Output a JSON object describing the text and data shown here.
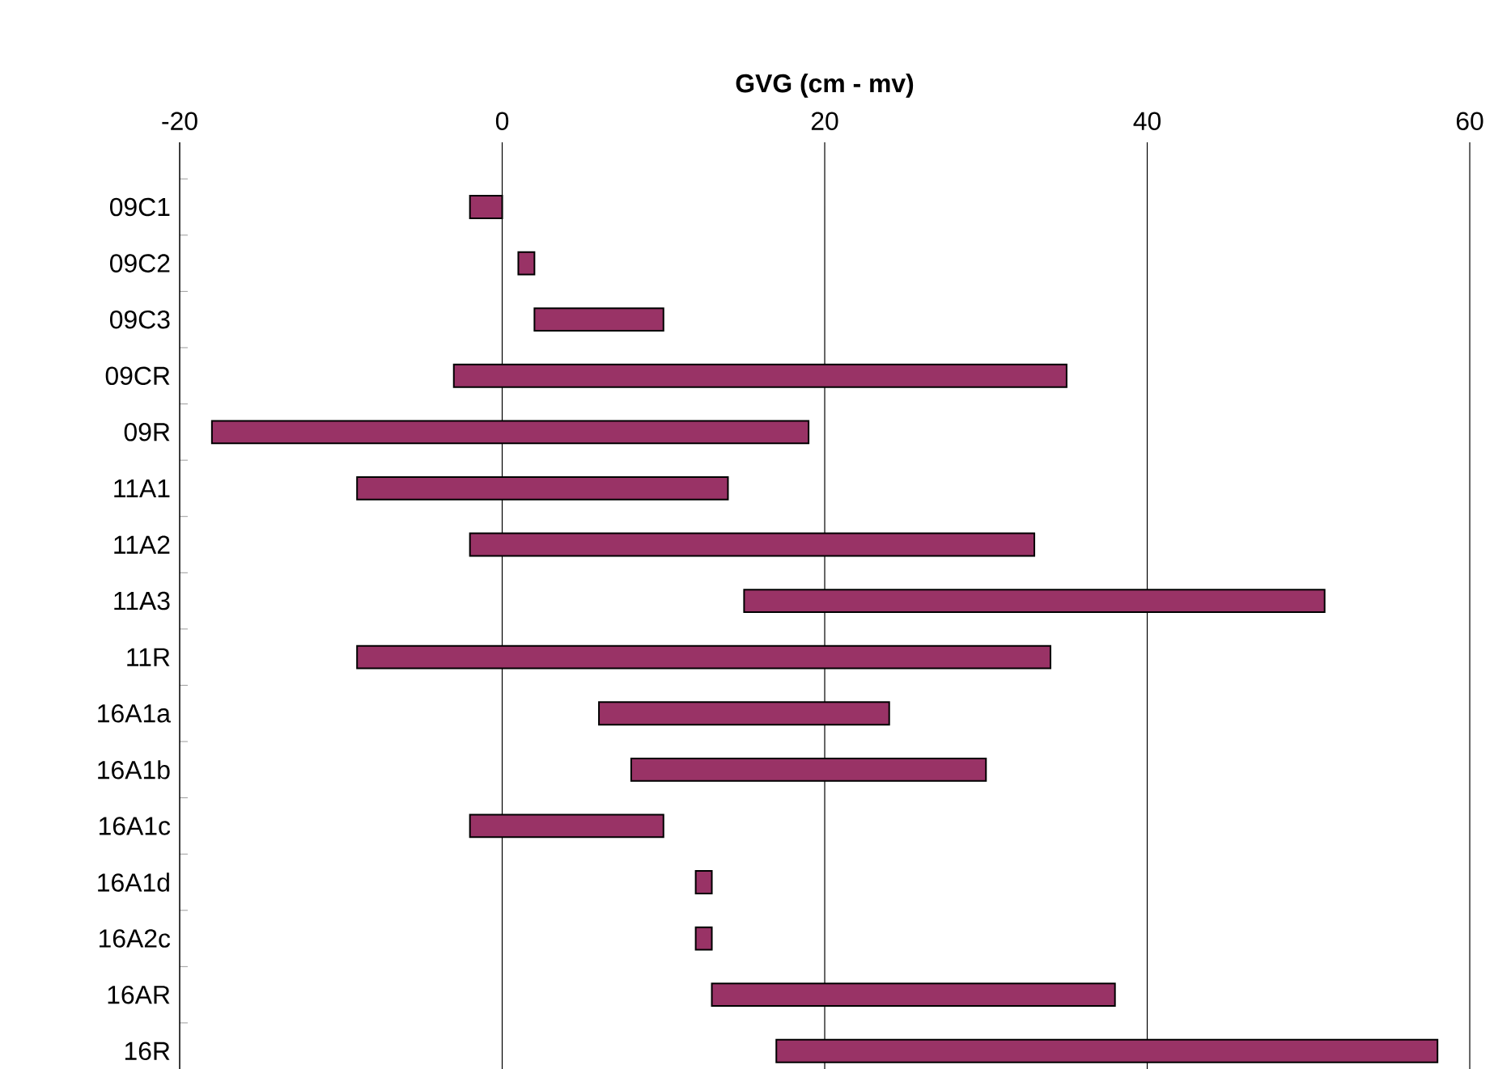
{
  "chart_data": {
    "type": "bar",
    "orientation": "horizontal",
    "xlabel": "GVG (cm - mv)",
    "categories": [
      "09C1",
      "09C2",
      "09C3",
      "09CR",
      "09R",
      "11A1",
      "11A2",
      "11A3",
      "11R",
      "16A1a",
      "16A1b",
      "16A1c",
      "16A1d",
      "16A2c",
      "16AR",
      "16R"
    ],
    "base": [
      -2,
      1,
      2,
      -3,
      -18,
      -9,
      -2,
      15,
      -9,
      6,
      8,
      -2,
      12,
      12,
      13,
      17
    ],
    "values": [
      2,
      1,
      8,
      38,
      37,
      23,
      35,
      36,
      43,
      18,
      22,
      12,
      1,
      1,
      25,
      41
    ],
    "color": "#993366",
    "xlim": [
      -20,
      60
    ],
    "xticks": [
      -20,
      0,
      20,
      40,
      60
    ],
    "grid": "x"
  }
}
